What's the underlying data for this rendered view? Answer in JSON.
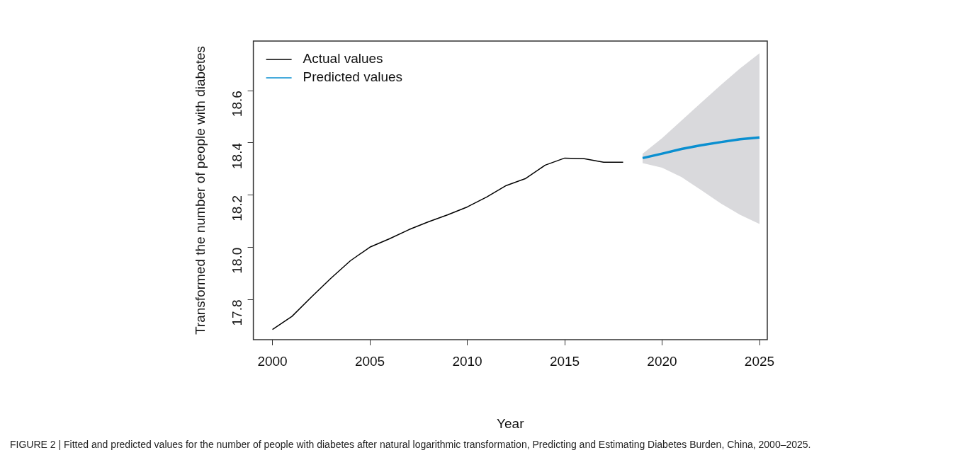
{
  "chart_data": {
    "type": "line",
    "xlabel": "Year",
    "ylabel": "Transformed the number of people with diabetes",
    "xlim": [
      1999.02,
      2025.4
    ],
    "xticks": [
      2000,
      2005,
      2010,
      2015,
      2020,
      2025
    ],
    "ylim": [
      17.647,
      18.79
    ],
    "yticks": [
      {
        "value": 17.8,
        "label": "17.8"
      },
      {
        "value": 18,
        "label": "18.0"
      },
      {
        "value": 18.2,
        "label": "18.2"
      },
      {
        "value": 18.4,
        "label": "18.4"
      },
      {
        "value": 18.6,
        "label": "18.6"
      }
    ],
    "grid": false,
    "legend": "top left",
    "marker": "none",
    "line_style": "solid",
    "series": [
      {
        "name": "Actual values",
        "color": "#000000",
        "x": [
          2000,
          2001,
          2002,
          2003,
          2004,
          2005,
          2006,
          2007,
          2008,
          2009,
          2010,
          2011,
          2012,
          2013,
          2014,
          2015,
          2016,
          2017,
          2018
        ],
        "values": [
          17.686,
          17.736,
          17.81,
          17.882,
          17.949,
          18.001,
          18.033,
          18.068,
          18.098,
          18.125,
          18.155,
          18.193,
          18.237,
          18.264,
          18.315,
          18.342,
          18.34,
          18.326,
          18.326
        ]
      },
      {
        "name": "Predicted values",
        "color": "#0a8fd0",
        "x": [
          2019,
          2020,
          2021,
          2022,
          2023,
          2024,
          2025
        ],
        "values": [
          18.342,
          18.359,
          18.377,
          18.391,
          18.403,
          18.414,
          18.421
        ],
        "lower": [
          18.323,
          18.305,
          18.269,
          18.22,
          18.169,
          18.125,
          18.09
        ],
        "upper": [
          18.359,
          18.418,
          18.486,
          18.554,
          18.621,
          18.685,
          18.743
        ]
      }
    ],
    "annotations": [
      "FIGURE 2 | Fitted and predicted values for the number of people with diabetes after natural logarithmic transformation, Predicting and Estimating Diabetes Burden, China, 2000–2025."
    ]
  }
}
